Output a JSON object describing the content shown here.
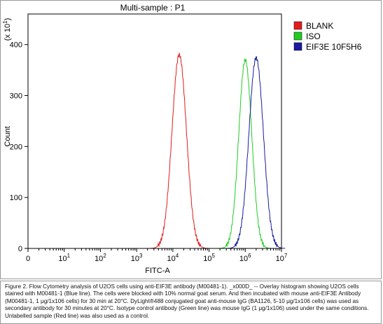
{
  "chart_data": {
    "type": "histogram-overlay",
    "title": "Multi-sample : P1",
    "xlabel": "FITC-A",
    "ylabel": "Count",
    "y_multiplier": "(x 10^1)",
    "x_scale": "log",
    "xlim": [
      0,
      10000000
    ],
    "ylim": [
      0,
      460
    ],
    "y_ticks": [
      0,
      100,
      200,
      300,
      400
    ],
    "x_tick_labels": [
      "0",
      "10^1",
      "10^2",
      "10^3",
      "10^4",
      "10^5",
      "10^6",
      "10^7"
    ],
    "legend_position": "top-right",
    "series": [
      {
        "name": "BLANK",
        "color": "#e31b1b",
        "fill": "#e31b1b",
        "peak_x": 15000,
        "peak_y": 380,
        "width_decades": 0.2
      },
      {
        "name": "ISO",
        "color": "#22cc22",
        "fill": "#22cc22",
        "peak_x": 1000000,
        "peak_y": 370,
        "width_decades": 0.18
      },
      {
        "name": "EIF3E 10F5H6",
        "color": "#1a1aa0",
        "fill": "#1a1aa0",
        "peak_x": 2000000,
        "peak_y": 374,
        "width_decades": 0.2
      }
    ]
  },
  "caption": "Figure 2. Flow Cytometry analysis of U2OS cells using anti-EIF3E antibody (M00481-1). _x000D_ -- Overlay histogram showing U2OS cells stained with M00481-1 (Blue line). The cells were blocked with 10% normal goat serum. And then incubated with mouse anti-EIF3E Antibody (M00481-1, 1 μg/1x106 cells) for 30 min at 20°C. DyLight®488 conjugated goat anti-mouse IgG (BA1126, 5-10 μg/1x106 cells) was used as secondary antibody for 30 minutes at 20°C. Isotype control antibody (Green line) was mouse IgG (1 μg/1x106) used under the same conditions. Unlabelled sample (Red line) was also used as a control."
}
